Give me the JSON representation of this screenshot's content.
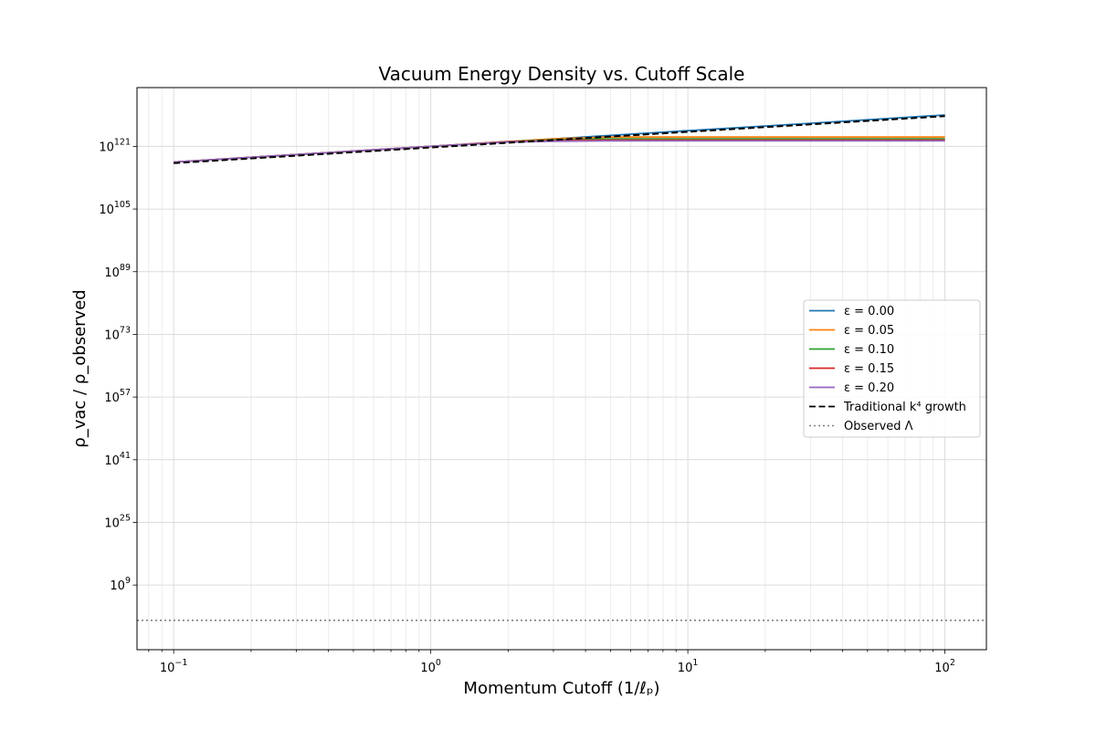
{
  "chart_data": {
    "type": "line",
    "title": "Vacuum Energy Density vs. Cutoff Scale",
    "xlabel": "Momentum Cutoff (1/ℓₚ)",
    "ylabel": "ρ_vac / ρ_observed",
    "xscale": "log",
    "yscale": "log",
    "xlim": [
      0.072,
      145
    ],
    "ylim_log10": [
      -7.5,
      136
    ],
    "x_ticks": [
      {
        "value": 0.1,
        "base": "10",
        "exp": "−1"
      },
      {
        "value": 1,
        "base": "10",
        "exp": "0"
      },
      {
        "value": 10,
        "base": "10",
        "exp": "1"
      },
      {
        "value": 100,
        "base": "10",
        "exp": "2"
      }
    ],
    "y_ticks": [
      {
        "log10": 9,
        "base": "10",
        "exp": "9"
      },
      {
        "log10": 25,
        "base": "10",
        "exp": "25"
      },
      {
        "log10": 41,
        "base": "10",
        "exp": "41"
      },
      {
        "log10": 57,
        "base": "10",
        "exp": "57"
      },
      {
        "log10": 73,
        "base": "10",
        "exp": "73"
      },
      {
        "log10": 89,
        "base": "10",
        "exp": "89"
      },
      {
        "log10": 105,
        "base": "10",
        "exp": "105"
      },
      {
        "log10": 121,
        "base": "10",
        "exp": "121"
      }
    ],
    "grid": true,
    "legend_position": "center-right",
    "series": [
      {
        "name": "ε = 0.00",
        "color": "#1f77b4",
        "style": "solid",
        "x": [
          0.1,
          1,
          2,
          5,
          10,
          30,
          100
        ],
        "y_log10": [
          117,
          121,
          122.2,
          123.8,
          125,
          126.9,
          129
        ]
      },
      {
        "name": "ε = 0.05",
        "color": "#ff7f0e",
        "style": "solid",
        "x": [
          0.1,
          1,
          2,
          3,
          5,
          100
        ],
        "y_log10": [
          117,
          121,
          122.2,
          122.9,
          123.4,
          123.4
        ]
      },
      {
        "name": "ε = 0.10",
        "color": "#2ca02c",
        "style": "solid",
        "x": [
          0.1,
          1,
          2,
          3,
          5,
          100
        ],
        "y_log10": [
          117,
          121,
          122.2,
          122.7,
          122.9,
          122.9
        ]
      },
      {
        "name": "ε = 0.15",
        "color": "#d62728",
        "style": "solid",
        "x": [
          0.1,
          1,
          2,
          3,
          5,
          100
        ],
        "y_log10": [
          117,
          121,
          122.2,
          122.5,
          122.6,
          122.6
        ]
      },
      {
        "name": "ε = 0.20",
        "color": "#9467bd",
        "style": "solid",
        "x": [
          0.1,
          1,
          2,
          3,
          5,
          100
        ],
        "y_log10": [
          117,
          121,
          122.1,
          122.3,
          122.4,
          122.4
        ]
      },
      {
        "name": "Traditional k⁴ growth",
        "color": "#000000",
        "style": "dashed",
        "x": [
          0.1,
          100
        ],
        "y_log10": [
          116.7,
          128.7
        ]
      },
      {
        "name": "Observed Λ",
        "color": "#808080",
        "style": "dotted",
        "hline_log10": 0
      }
    ]
  }
}
